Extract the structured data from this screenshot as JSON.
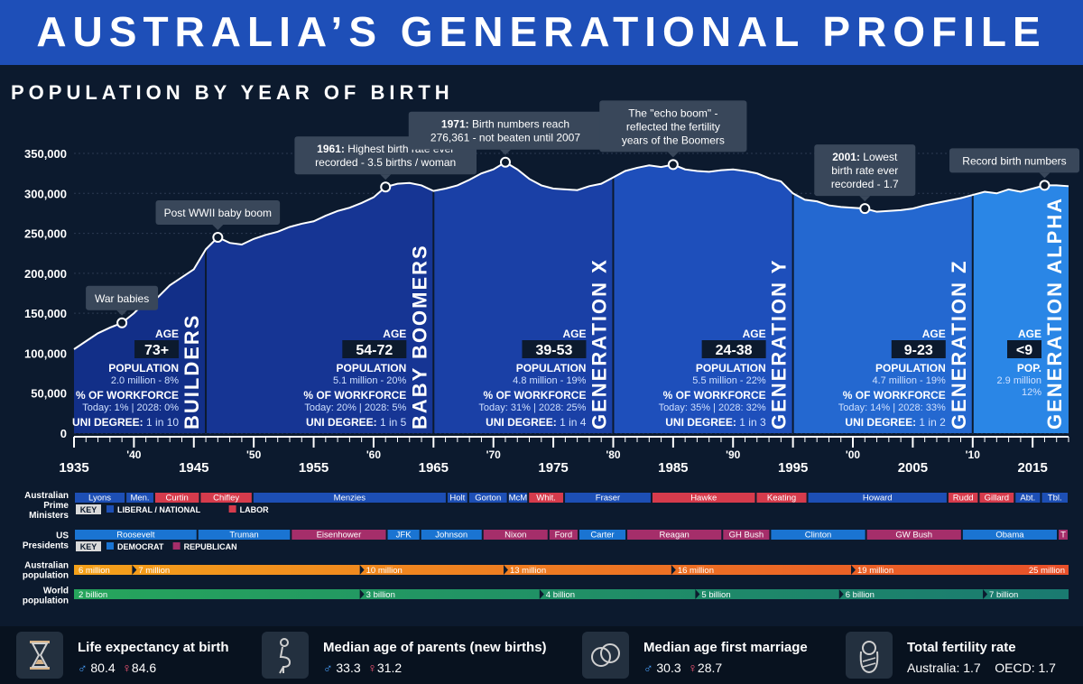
{
  "header": {
    "title": "AUSTRALIA’S GENERATIONAL PROFILE",
    "subtitle": "POPULATION BY YEAR OF BIRTH"
  },
  "chart_data": {
    "type": "area",
    "title": "POPULATION BY YEAR OF BIRTH",
    "xlim": [
      1935,
      2018
    ],
    "ylim": [
      0,
      350000
    ],
    "yticks": [
      0,
      50000,
      100000,
      150000,
      200000,
      250000,
      300000,
      350000
    ],
    "ytick_labels": [
      "0",
      "50,000",
      "100,000",
      "150,000",
      "200,000",
      "250,000",
      "300,000",
      "350,000"
    ],
    "xticks_major": [
      1935,
      1945,
      1955,
      1965,
      1975,
      1985,
      1995,
      2005,
      2015
    ],
    "xticks_minor": [
      [
        1940,
        "'40"
      ],
      [
        1950,
        "'50"
      ],
      [
        1960,
        "'60"
      ],
      [
        1970,
        "'70"
      ],
      [
        1980,
        "'80"
      ],
      [
        1990,
        "'90"
      ],
      [
        2000,
        "'00"
      ],
      [
        2010,
        "'10"
      ]
    ],
    "x": [
      1935,
      1936,
      1937,
      1938,
      1939,
      1940,
      1941,
      1942,
      1943,
      1944,
      1945,
      1946,
      1947,
      1948,
      1949,
      1950,
      1951,
      1952,
      1953,
      1954,
      1955,
      1956,
      1957,
      1958,
      1959,
      1960,
      1961,
      1962,
      1963,
      1964,
      1965,
      1966,
      1967,
      1968,
      1969,
      1970,
      1971,
      1972,
      1973,
      1974,
      1975,
      1976,
      1977,
      1978,
      1979,
      1980,
      1981,
      1982,
      1983,
      1984,
      1985,
      1986,
      1987,
      1988,
      1989,
      1990,
      1991,
      1992,
      1993,
      1994,
      1995,
      1996,
      1997,
      1998,
      1999,
      2000,
      2001,
      2002,
      2003,
      2004,
      2005,
      2006,
      2007,
      2008,
      2009,
      2010,
      2011,
      2012,
      2013,
      2014,
      2015,
      2016,
      2017,
      2018
    ],
    "y": [
      105000,
      115000,
      125000,
      132000,
      138000,
      150000,
      165000,
      170000,
      185000,
      195000,
      205000,
      230000,
      245000,
      238000,
      236000,
      243000,
      248000,
      252000,
      258000,
      262000,
      265000,
      272000,
      278000,
      282000,
      288000,
      295000,
      308000,
      312000,
      313000,
      310000,
      303000,
      306000,
      310000,
      317000,
      325000,
      330000,
      339000,
      330000,
      318000,
      310000,
      306000,
      305000,
      304000,
      309000,
      312000,
      320000,
      328000,
      332000,
      335000,
      333000,
      336000,
      330000,
      328000,
      327000,
      329000,
      330000,
      328000,
      325000,
      319000,
      315000,
      300000,
      292000,
      290000,
      285000,
      283000,
      282000,
      281000,
      277000,
      278000,
      279000,
      281000,
      285000,
      288000,
      291000,
      294000,
      298000,
      302000,
      300000,
      305000,
      302000,
      306000,
      310000,
      310000,
      309000
    ],
    "generations": [
      {
        "name": "BUILDERS",
        "from": 1935,
        "to": 1946,
        "color": "#122f88",
        "age": "73+",
        "population": "2.0 million - 8%",
        "workforce": "Today: 1% | 2028: 0%",
        "uni": "1 in 10",
        "workforce_label": "% OF WORKFORCE",
        "population_label": "POPULATION",
        "uni_label": "UNI DEGREE:"
      },
      {
        "name": "BABY BOOMERS",
        "from": 1946,
        "to": 1965,
        "color": "#163594",
        "age": "54-72",
        "population": "5.1 million - 20%",
        "workforce": "Today: 20% | 2028: 5%",
        "uni": "1 in 5",
        "workforce_label": "% OF WORKFORCE",
        "population_label": "POPULATION",
        "uni_label": "UNI DEGREE:"
      },
      {
        "name": "GENERATION X",
        "from": 1965,
        "to": 1980,
        "color": "#1a40a6",
        "age": "39-53",
        "population": "4.8 million - 19%",
        "workforce": "Today: 31% | 2028: 25%",
        "uni": "1 in 4",
        "workforce_label": "% OF WORKFORCE",
        "population_label": "POPULATION",
        "uni_label": "UNI DEGREE:"
      },
      {
        "name": "GENERATION Y",
        "from": 1980,
        "to": 1995,
        "color": "#1e4fbb",
        "age": "24-38",
        "population": "5.5 million - 22%",
        "workforce": "Today: 35% | 2028: 32%",
        "uni": "1 in 3",
        "workforce_label": "% OF WORKFORCE",
        "population_label": "POPULATION",
        "uni_label": "UNI DEGREE:"
      },
      {
        "name": "GENERATION Z",
        "from": 1995,
        "to": 2010,
        "color": "#2468d0",
        "age": "9-23",
        "population": "4.7 million - 19%",
        "workforce": "Today: 14% | 2028: 33%",
        "uni": "1 in 2",
        "workforce_label": "% OF WORKFORCE",
        "population_label": "POPULATION",
        "uni_label": "UNI DEGREE:"
      },
      {
        "name": "GENERATION ALPHA",
        "from": 2010,
        "to": 2018,
        "color": "#2a86e6",
        "age": "<9",
        "population": "2.9 million",
        "pop_pct": "12%",
        "population_label": "POP."
      }
    ],
    "age_label": "AGE",
    "annotations": [
      {
        "year": 1939,
        "value": 138000,
        "bold": "",
        "text": [
          "War babies"
        ]
      },
      {
        "year": 1947,
        "value": 245000,
        "bold": "",
        "text": [
          "Post WWII baby boom"
        ]
      },
      {
        "year": 1961,
        "value": 308000,
        "bold": "1961:",
        "text": [
          "Highest birth rate ever",
          "recorded - 3.5 births / woman"
        ]
      },
      {
        "year": 1971,
        "value": 339000,
        "bold": "1971:",
        "text": [
          "Birth numbers reach",
          "276,361 - not beaten until 2007"
        ]
      },
      {
        "year": 1985,
        "value": 336000,
        "bold": "",
        "text": [
          "The \"echo boom\" -",
          "reflected the fertility",
          "years of the Boomers"
        ]
      },
      {
        "year": 2001,
        "value": 281000,
        "bold": "2001:",
        "text": [
          "Lowest",
          "birth rate ever",
          "recorded - 1.7"
        ]
      },
      {
        "year": 2016,
        "value": 310000,
        "bold": "",
        "text": [
          "Record birth numbers"
        ]
      }
    ]
  },
  "timeline": {
    "pm": {
      "label": [
        "Australian",
        "Prime",
        "Ministers"
      ],
      "colors": {
        "liberal": "#1d4fb5",
        "labor": "#d63b4c"
      },
      "items": [
        {
          "name": "Lyons",
          "from": 1935,
          "to": 1939.3,
          "party": "liberal"
        },
        {
          "name": "Men.",
          "from": 1939.3,
          "to": 1941.7,
          "party": "liberal"
        },
        {
          "name": "Curtin",
          "from": 1941.7,
          "to": 1945.5,
          "party": "labor"
        },
        {
          "name": "Chifley",
          "from": 1945.5,
          "to": 1949.9,
          "party": "labor"
        },
        {
          "name": "Menzies",
          "from": 1949.9,
          "to": 1966.1,
          "party": "liberal"
        },
        {
          "name": "Holt",
          "from": 1966.1,
          "to": 1967.9,
          "party": "liberal"
        },
        {
          "name": "Gorton",
          "from": 1967.9,
          "to": 1971.2,
          "party": "liberal"
        },
        {
          "name": "McM",
          "from": 1971.2,
          "to": 1972.9,
          "party": "liberal"
        },
        {
          "name": "Whit.",
          "from": 1972.9,
          "to": 1975.9,
          "party": "labor"
        },
        {
          "name": "Fraser",
          "from": 1975.9,
          "to": 1983.2,
          "party": "liberal"
        },
        {
          "name": "Hawke",
          "from": 1983.2,
          "to": 1991.9,
          "party": "labor"
        },
        {
          "name": "Keating",
          "from": 1991.9,
          "to": 1996.2,
          "party": "labor"
        },
        {
          "name": "Howard",
          "from": 1996.2,
          "to": 2007.9,
          "party": "liberal"
        },
        {
          "name": "Rudd",
          "from": 2007.9,
          "to": 2010.5,
          "party": "labor"
        },
        {
          "name": "Gillard",
          "from": 2010.5,
          "to": 2013.5,
          "party": "labor"
        },
        {
          "name": "Abt.",
          "from": 2013.5,
          "to": 2015.7,
          "party": "liberal"
        },
        {
          "name": "Tbl.",
          "from": 2015.7,
          "to": 2018,
          "party": "liberal"
        }
      ],
      "key_label": "KEY",
      "key_items": [
        {
          "label": "LIBERAL / NATIONAL",
          "party": "liberal"
        },
        {
          "label": "LABOR",
          "party": "labor"
        }
      ]
    },
    "us": {
      "label": [
        "US",
        "Presidents"
      ],
      "colors": {
        "democrat": "#1a74d2",
        "republican": "#a52e6a"
      },
      "items": [
        {
          "name": "Roosevelt",
          "from": 1935,
          "to": 1945.3,
          "party": "democrat"
        },
        {
          "name": "Truman",
          "from": 1945.3,
          "to": 1953.1,
          "party": "democrat"
        },
        {
          "name": "Eisenhower",
          "from": 1953.1,
          "to": 1961.1,
          "party": "republican"
        },
        {
          "name": "JFK",
          "from": 1961.1,
          "to": 1963.9,
          "party": "democrat"
        },
        {
          "name": "Johnson",
          "from": 1963.9,
          "to": 1969.1,
          "party": "democrat"
        },
        {
          "name": "Nixon",
          "from": 1969.1,
          "to": 1974.6,
          "party": "republican"
        },
        {
          "name": "Ford",
          "from": 1974.6,
          "to": 1977.1,
          "party": "republican"
        },
        {
          "name": "Carter",
          "from": 1977.1,
          "to": 1981.1,
          "party": "democrat"
        },
        {
          "name": "Reagan",
          "from": 1981.1,
          "to": 1989.1,
          "party": "republican"
        },
        {
          "name": "GH Bush",
          "from": 1989.1,
          "to": 1993.1,
          "party": "republican"
        },
        {
          "name": "Clinton",
          "from": 1993.1,
          "to": 2001.1,
          "party": "democrat"
        },
        {
          "name": "GW Bush",
          "from": 2001.1,
          "to": 2009.1,
          "party": "republican"
        },
        {
          "name": "Obama",
          "from": 2009.1,
          "to": 2017.1,
          "party": "democrat"
        },
        {
          "name": "T",
          "from": 2017.1,
          "to": 2018,
          "party": "republican"
        }
      ],
      "key_label": "KEY",
      "key_items": [
        {
          "label": "DEMOCRAT",
          "party": "democrat"
        },
        {
          "label": "REPUBLICAN",
          "party": "republican"
        }
      ]
    },
    "aus_pop": {
      "label": [
        "Australian",
        "population"
      ],
      "start_color": "#f4a11a",
      "end_color": "#e8502a",
      "markers": [
        {
          "label": "6 million",
          "year": 1935
        },
        {
          "label": "7 million",
          "year": 1940
        },
        {
          "label": "10 million",
          "year": 1959
        },
        {
          "label": "13 million",
          "year": 1971
        },
        {
          "label": "16 million",
          "year": 1985
        },
        {
          "label": "19 million",
          "year": 2000
        },
        {
          "label": "25 million",
          "year": 2018,
          "align": "end"
        }
      ]
    },
    "world_pop": {
      "label": [
        "World",
        "population"
      ],
      "start_color": "#26a55c",
      "end_color": "#1a7a70",
      "markers": [
        {
          "label": "2 billion",
          "year": 1935
        },
        {
          "label": "3 billion",
          "year": 1959
        },
        {
          "label": "4 billion",
          "year": 1974
        },
        {
          "label": "5 billion",
          "year": 1987
        },
        {
          "label": "6 billion",
          "year": 1999
        },
        {
          "label": "7 billion",
          "year": 2011
        }
      ]
    }
  },
  "footer": {
    "life": {
      "title": "Life expectancy at birth",
      "male": "80.4",
      "female": "84.6"
    },
    "parents": {
      "title": "Median age of parents (new births)",
      "male": "33.3",
      "female": "31.2"
    },
    "marriage": {
      "title": "Median age first marriage",
      "male": "30.3",
      "female": "28.7"
    },
    "fertility": {
      "title": "Total fertility rate",
      "australia": "Australia: 1.7",
      "oecd": "OECD: 1.7"
    },
    "male_symbol": "♂",
    "female_symbol": "♀"
  }
}
